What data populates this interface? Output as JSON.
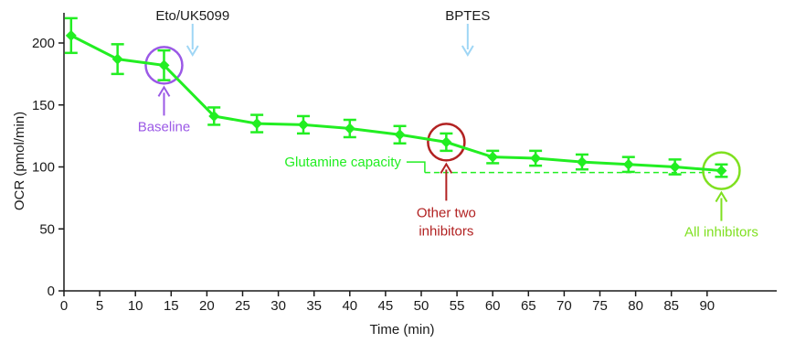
{
  "chart_data": {
    "type": "line",
    "xlabel": "Time (min)",
    "ylabel": "OCR (pmol/min)",
    "xlim": [
      0,
      98
    ],
    "ylim": [
      0,
      220
    ],
    "xticks": [
      0,
      5,
      10,
      15,
      20,
      25,
      30,
      35,
      40,
      45,
      50,
      55,
      60,
      65,
      70,
      75,
      80,
      85,
      90
    ],
    "yticks": [
      0,
      50,
      100,
      150,
      200
    ],
    "grid": false,
    "series": [
      {
        "color": "#22ee22",
        "points": [
          {
            "x": 1,
            "y": 206,
            "err": 14
          },
          {
            "x": 7.5,
            "y": 187,
            "err": 12
          },
          {
            "x": 14,
            "y": 182,
            "err": 12
          },
          {
            "x": 21,
            "y": 141,
            "err": 7
          },
          {
            "x": 27,
            "y": 135,
            "err": 7
          },
          {
            "x": 33.5,
            "y": 134,
            "err": 7
          },
          {
            "x": 40,
            "y": 131,
            "err": 7
          },
          {
            "x": 47,
            "y": 126,
            "err": 7
          },
          {
            "x": 53.5,
            "y": 120,
            "err": 7
          },
          {
            "x": 60,
            "y": 108,
            "err": 5
          },
          {
            "x": 66,
            "y": 107,
            "err": 6
          },
          {
            "x": 72.5,
            "y": 104,
            "err": 6
          },
          {
            "x": 79,
            "y": 102,
            "err": 6
          },
          {
            "x": 85.5,
            "y": 100,
            "err": 6
          },
          {
            "x": 92,
            "y": 97,
            "err": 5
          }
        ]
      }
    ],
    "injections": [
      {
        "label": "Eto/UK5099",
        "x": 18
      },
      {
        "label": "BPTES",
        "x": 56.5
      }
    ],
    "circles": [
      {
        "x": 14,
        "y": 182,
        "color": "#9b59e6",
        "label": "Baseline"
      },
      {
        "x": 53.5,
        "y": 120,
        "color": "#b22222",
        "label_lines": [
          "Other two",
          "inhibitors"
        ]
      },
      {
        "x": 92,
        "y": 97,
        "color": "#7fe020",
        "label": "All inhibitors"
      }
    ],
    "bracket": {
      "label": "Glutamine capacity",
      "x1": 51,
      "x2": 92,
      "y_top": 120,
      "y_bottom": 97,
      "color": "#22ee22"
    },
    "colors": {
      "axis": "#1a1a1a",
      "injection_arrow": "#9fd6f5"
    }
  }
}
